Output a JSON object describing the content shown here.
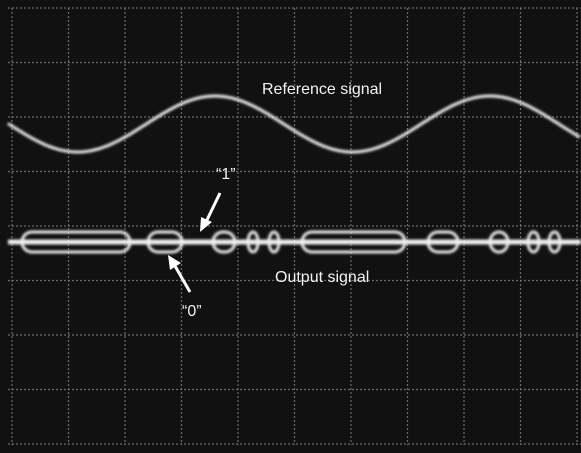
{
  "labels": {
    "reference": "Reference signal",
    "output": "Output signal",
    "one": "“1”",
    "zero": "“0”"
  }
}
